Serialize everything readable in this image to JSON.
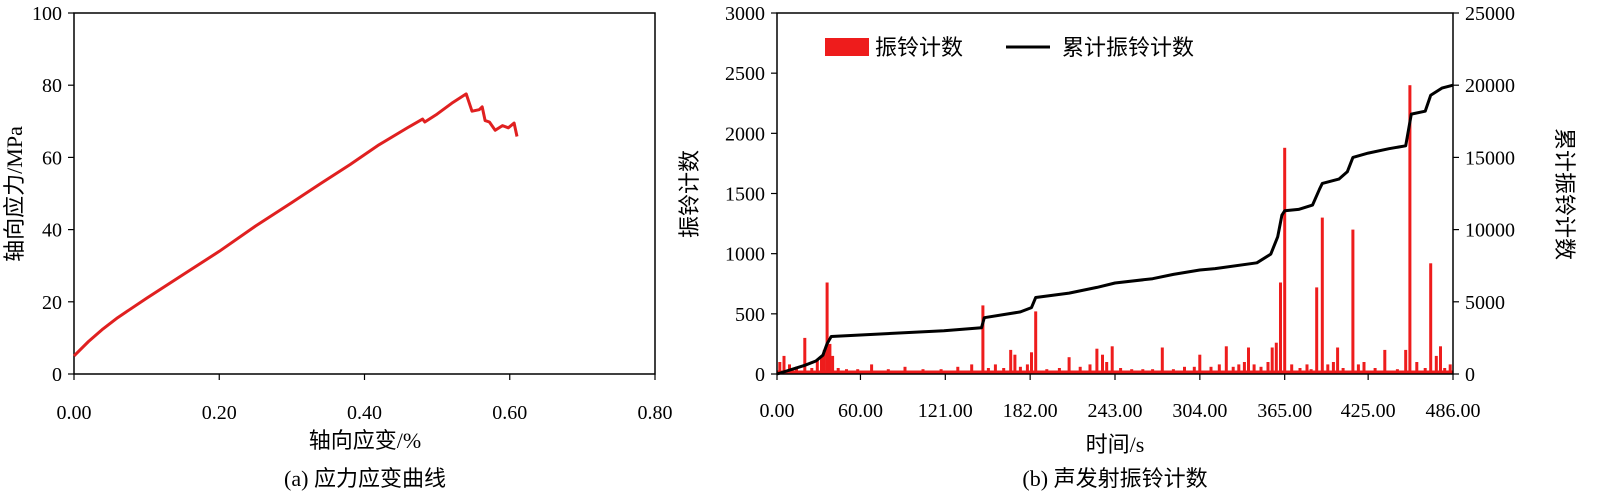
{
  "chart_data": [
    {
      "type": "line",
      "caption": "(a) 应力应变曲线",
      "xlabel": "轴向应变/%",
      "ylabel": "轴向应力/MPa",
      "xlim": [
        0,
        0.8
      ],
      "ylim": [
        0,
        100
      ],
      "xticks": [
        "0.00",
        "0.20",
        "0.40",
        "0.60",
        "0.80"
      ],
      "yticks": [
        "0",
        "20",
        "40",
        "60",
        "80",
        "100"
      ],
      "series": [
        {
          "color": "#e02020",
          "points": [
            [
              0.0,
              5.0
            ],
            [
              0.02,
              9.0
            ],
            [
              0.04,
              12.5
            ],
            [
              0.06,
              15.6
            ],
            [
              0.1,
              21.0
            ],
            [
              0.15,
              27.5
            ],
            [
              0.2,
              34.0
            ],
            [
              0.25,
              41.0
            ],
            [
              0.3,
              47.5
            ],
            [
              0.34,
              52.8
            ],
            [
              0.38,
              58.0
            ],
            [
              0.42,
              63.5
            ],
            [
              0.46,
              68.3
            ],
            [
              0.48,
              70.6
            ],
            [
              0.483,
              69.8
            ],
            [
              0.5,
              72.0
            ],
            [
              0.52,
              75.0
            ],
            [
              0.54,
              77.6
            ],
            [
              0.548,
              72.8
            ],
            [
              0.558,
              73.2
            ],
            [
              0.562,
              74.0
            ],
            [
              0.566,
              70.2
            ],
            [
              0.572,
              69.8
            ],
            [
              0.58,
              67.5
            ],
            [
              0.59,
              68.8
            ],
            [
              0.598,
              68.2
            ],
            [
              0.606,
              69.5
            ],
            [
              0.61,
              65.8
            ]
          ]
        }
      ]
    },
    {
      "type": "bar+line",
      "caption": "(b) 声发射振铃计数",
      "xlabel": "时间/s",
      "ylabel_left": "振铃计数",
      "ylabel_right": "累计振铃计数",
      "xlim": [
        0,
        486
      ],
      "ylim_left": [
        0,
        3000
      ],
      "ylim_right": [
        0,
        25000
      ],
      "xticks": [
        "0.00",
        "60.00",
        "121.00",
        "182.00",
        "243.00",
        "304.00",
        "365.00",
        "425.00",
        "486.00"
      ],
      "yticks_left": [
        "0",
        "500",
        "1000",
        "1500",
        "2000",
        "2500",
        "3000"
      ],
      "yticks_right": [
        "0",
        "5000",
        "10000",
        "15000",
        "20000",
        "25000"
      ],
      "legend": {
        "bars": "振铃计数",
        "line": "累计振铃计数"
      },
      "colors": {
        "bars": "#ee1c1c",
        "line": "#000000"
      },
      "bars": [
        [
          2,
          100
        ],
        [
          5,
          150
        ],
        [
          9,
          80
        ],
        [
          14,
          60
        ],
        [
          20,
          300
        ],
        [
          25,
          50
        ],
        [
          29,
          120
        ],
        [
          32,
          150
        ],
        [
          34,
          200
        ],
        [
          36,
          760
        ],
        [
          38,
          250
        ],
        [
          40,
          150
        ],
        [
          44,
          50
        ],
        [
          50,
          40
        ],
        [
          58,
          40
        ],
        [
          68,
          80
        ],
        [
          80,
          40
        ],
        [
          92,
          60
        ],
        [
          105,
          40
        ],
        [
          118,
          40
        ],
        [
          130,
          60
        ],
        [
          140,
          80
        ],
        [
          148,
          570
        ],
        [
          152,
          50
        ],
        [
          157,
          80
        ],
        [
          163,
          50
        ],
        [
          168,
          200
        ],
        [
          171,
          160
        ],
        [
          175,
          60
        ],
        [
          180,
          80
        ],
        [
          183,
          180
        ],
        [
          186,
          520
        ],
        [
          194,
          40
        ],
        [
          203,
          50
        ],
        [
          210,
          140
        ],
        [
          218,
          60
        ],
        [
          225,
          80
        ],
        [
          230,
          210
        ],
        [
          234,
          160
        ],
        [
          237,
          100
        ],
        [
          241,
          230
        ],
        [
          247,
          50
        ],
        [
          255,
          40
        ],
        [
          263,
          40
        ],
        [
          270,
          40
        ],
        [
          277,
          220
        ],
        [
          285,
          40
        ],
        [
          293,
          60
        ],
        [
          300,
          60
        ],
        [
          304,
          160
        ],
        [
          312,
          60
        ],
        [
          318,
          80
        ],
        [
          323,
          230
        ],
        [
          328,
          60
        ],
        [
          332,
          80
        ],
        [
          336,
          100
        ],
        [
          339,
          220
        ],
        [
          343,
          80
        ],
        [
          348,
          60
        ],
        [
          353,
          100
        ],
        [
          356,
          220
        ],
        [
          359,
          260
        ],
        [
          362,
          760
        ],
        [
          365,
          1880
        ],
        [
          370,
          80
        ],
        [
          376,
          50
        ],
        [
          381,
          80
        ],
        [
          384,
          40
        ],
        [
          388,
          720
        ],
        [
          392,
          1300
        ],
        [
          396,
          80
        ],
        [
          400,
          100
        ],
        [
          403,
          220
        ],
        [
          407,
          50
        ],
        [
          414,
          1200
        ],
        [
          418,
          80
        ],
        [
          422,
          100
        ],
        [
          430,
          50
        ],
        [
          437,
          200
        ],
        [
          446,
          40
        ],
        [
          452,
          200
        ],
        [
          455,
          2400
        ],
        [
          460,
          100
        ],
        [
          466,
          50
        ],
        [
          470,
          920
        ],
        [
          474,
          150
        ],
        [
          477,
          230
        ],
        [
          480,
          50
        ],
        [
          484,
          80
        ]
      ],
      "cumulative": [
        [
          0,
          0
        ],
        [
          10,
          300
        ],
        [
          20,
          600
        ],
        [
          28,
          900
        ],
        [
          33,
          1300
        ],
        [
          36,
          2100
        ],
        [
          39,
          2600
        ],
        [
          60,
          2700
        ],
        [
          120,
          3000
        ],
        [
          147,
          3200
        ],
        [
          149,
          3900
        ],
        [
          175,
          4300
        ],
        [
          183,
          4600
        ],
        [
          186,
          5300
        ],
        [
          210,
          5600
        ],
        [
          230,
          6000
        ],
        [
          243,
          6300
        ],
        [
          270,
          6600
        ],
        [
          285,
          6900
        ],
        [
          304,
          7200
        ],
        [
          315,
          7300
        ],
        [
          345,
          7700
        ],
        [
          355,
          8300
        ],
        [
          360,
          9500
        ],
        [
          363,
          11000
        ],
        [
          365,
          11300
        ],
        [
          375,
          11400
        ],
        [
          385,
          11700
        ],
        [
          390,
          12800
        ],
        [
          392,
          13200
        ],
        [
          404,
          13500
        ],
        [
          410,
          14000
        ],
        [
          414,
          15000
        ],
        [
          425,
          15300
        ],
        [
          440,
          15600
        ],
        [
          452,
          15800
        ],
        [
          456,
          18000
        ],
        [
          466,
          18200
        ],
        [
          470,
          19300
        ],
        [
          478,
          19800
        ],
        [
          486,
          20000
        ]
      ]
    }
  ]
}
